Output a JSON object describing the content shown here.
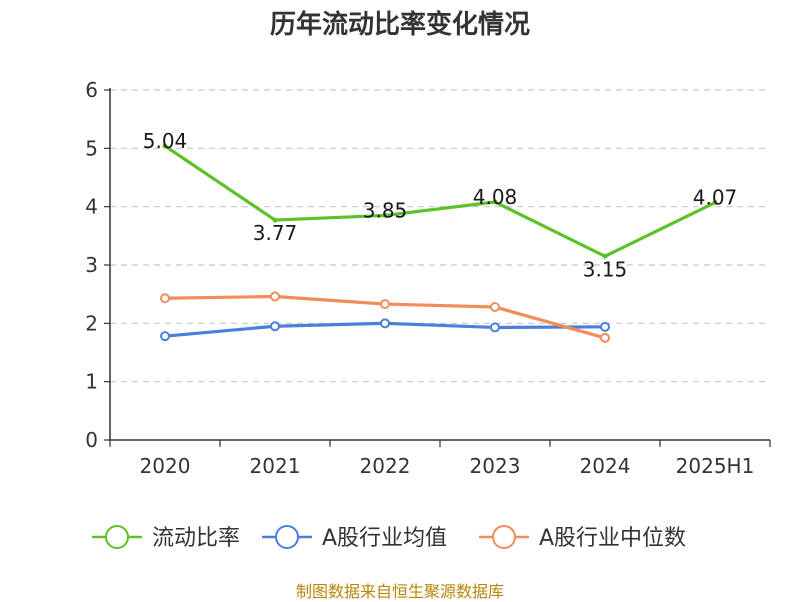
{
  "chart_data": {
    "type": "line",
    "title": "历年流动比率变化情况",
    "categories": [
      "2020",
      "2021",
      "2022",
      "2023",
      "2024",
      "2025H1"
    ],
    "ylim": [
      0,
      6
    ],
    "yticks": [
      0,
      1,
      2,
      3,
      4,
      5,
      6
    ],
    "grid": true,
    "legend_position": "bottom",
    "series": [
      {
        "name": "流动比率",
        "color": "#5cc22a",
        "values": [
          5.04,
          3.77,
          3.85,
          4.08,
          3.15,
          4.07
        ],
        "labels": [
          "5.04",
          "3.77",
          "3.85",
          "4.08",
          "3.15",
          "4.07"
        ]
      },
      {
        "name": "A股行业均值",
        "color": "#4a7fdb",
        "values": [
          1.78,
          1.95,
          2.0,
          1.93,
          1.94,
          null
        ]
      },
      {
        "name": "A股行业中位数",
        "color": "#f28c5a",
        "values": [
          2.43,
          2.46,
          2.33,
          2.28,
          1.75,
          null
        ]
      }
    ],
    "source": "制图数据来自恒生聚源数据库"
  }
}
